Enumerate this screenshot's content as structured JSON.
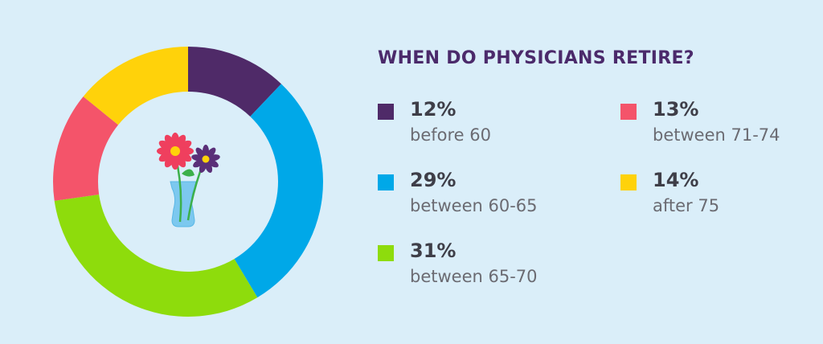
{
  "chart_data": {
    "type": "pie",
    "title": "WHEN DO PHYSICIANS RETIRE?",
    "categories": [
      "before 60",
      "between 60-65",
      "between 65-70",
      "between 71-74",
      "after 75"
    ],
    "values": [
      12,
      29,
      31,
      13,
      14
    ],
    "labels": [
      "12%",
      "29%",
      "31%",
      "13%",
      "14%"
    ],
    "colors": [
      "#4f2a68",
      "#00a8e8",
      "#8edc0c",
      "#f4546a",
      "#ffd20a"
    ],
    "donut": true,
    "legend_position": "right"
  },
  "decor": {
    "center_icon": "flower-vase-icon",
    "background_color": "#daeef9",
    "title_color": "#4b2a6b"
  }
}
